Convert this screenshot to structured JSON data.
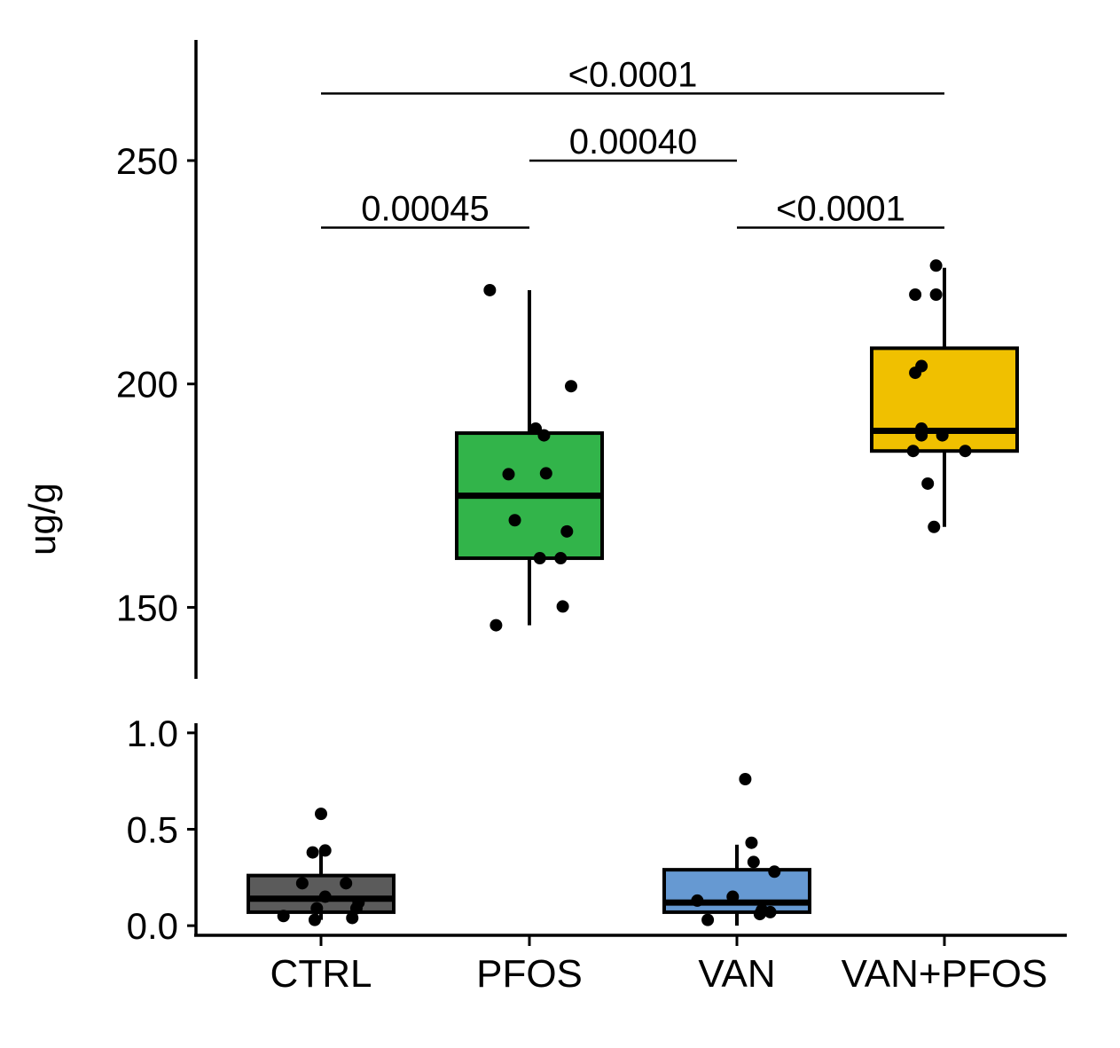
{
  "chart_data": {
    "type": "box",
    "ylabel": "ug/g",
    "categories": [
      "CTRL",
      "PFOS",
      "VAN",
      "VAN+PFOS"
    ],
    "y_axis_break": true,
    "panels": [
      {
        "name": "upper",
        "ylim": [
          134,
          277
        ],
        "ticks": [
          "150",
          "200",
          "250"
        ],
        "tick_values": [
          150,
          200,
          250
        ]
      },
      {
        "name": "lower",
        "ylim": [
          -0.05,
          1.05
        ],
        "ticks": [
          "0.0",
          "0.5",
          "1.0"
        ],
        "tick_values": [
          0.0,
          0.5,
          1.0
        ]
      }
    ],
    "groups": [
      {
        "category": "CTRL",
        "panel": "lower",
        "color": "#5b5b5b",
        "q1": 0.07,
        "median": 0.14,
        "q3": 0.26,
        "whisker_low": 0.03,
        "whisker_high": 0.38,
        "points": [
          {
            "x": 0.0,
            "y": 0.58
          },
          {
            "x": -0.04,
            "y": 0.38
          },
          {
            "x": 0.02,
            "y": 0.39
          },
          {
            "x": -0.09,
            "y": 0.22
          },
          {
            "x": 0.12,
            "y": 0.22
          },
          {
            "x": 0.02,
            "y": 0.15
          },
          {
            "x": -0.02,
            "y": 0.09
          },
          {
            "x": 0.18,
            "y": 0.12
          },
          {
            "x": 0.17,
            "y": 0.09
          },
          {
            "x": -0.18,
            "y": 0.05
          },
          {
            "x": -0.03,
            "y": 0.03
          },
          {
            "x": 0.15,
            "y": 0.04
          }
        ]
      },
      {
        "category": "PFOS",
        "panel": "upper",
        "color": "#32b44a",
        "q1": 161,
        "median": 175,
        "q3": 189,
        "whisker_low": 146,
        "whisker_high": 221,
        "points": [
          {
            "x": -0.19,
            "y": 221
          },
          {
            "x": 0.2,
            "y": 199.5
          },
          {
            "x": 0.03,
            "y": 190
          },
          {
            "x": 0.07,
            "y": 188.5
          },
          {
            "x": -0.1,
            "y": 179.8
          },
          {
            "x": 0.08,
            "y": 180
          },
          {
            "x": -0.07,
            "y": 169.5
          },
          {
            "x": 0.18,
            "y": 167
          },
          {
            "x": 0.05,
            "y": 161
          },
          {
            "x": 0.15,
            "y": 161
          },
          {
            "x": 0.16,
            "y": 150.2
          },
          {
            "x": -0.16,
            "y": 146
          }
        ]
      },
      {
        "category": "VAN",
        "panel": "lower",
        "color": "#6699d2",
        "q1": 0.07,
        "median": 0.12,
        "q3": 0.29,
        "whisker_low": 0.0,
        "whisker_high": 0.42,
        "points": [
          {
            "x": 0.04,
            "y": 0.76
          },
          {
            "x": 0.07,
            "y": 0.43
          },
          {
            "x": 0.08,
            "y": 0.33
          },
          {
            "x": 0.18,
            "y": 0.28
          },
          {
            "x": -0.02,
            "y": 0.15
          },
          {
            "x": -0.19,
            "y": 0.13
          },
          {
            "x": 0.12,
            "y": 0.08
          },
          {
            "x": 0.16,
            "y": 0.07
          },
          {
            "x": 0.11,
            "y": 0.06
          },
          {
            "x": -0.14,
            "y": 0.03
          }
        ]
      },
      {
        "category": "VAN+PFOS",
        "panel": "upper",
        "color": "#f0c000",
        "q1": 185,
        "median": 189.5,
        "q3": 208,
        "whisker_low": 168,
        "whisker_high": 226,
        "points": [
          {
            "x": -0.04,
            "y": 226.5
          },
          {
            "x": -0.14,
            "y": 220
          },
          {
            "x": -0.04,
            "y": 220
          },
          {
            "x": -0.11,
            "y": 204
          },
          {
            "x": -0.14,
            "y": 202.5
          },
          {
            "x": -0.11,
            "y": 190
          },
          {
            "x": -0.11,
            "y": 188.5
          },
          {
            "x": -0.01,
            "y": 188.5
          },
          {
            "x": -0.15,
            "y": 185
          },
          {
            "x": 0.1,
            "y": 185
          },
          {
            "x": -0.08,
            "y": 177.7
          },
          {
            "x": -0.05,
            "y": 168
          }
        ]
      }
    ],
    "comparisons": [
      {
        "from": "CTRL",
        "to": "PFOS",
        "label": "0.00045",
        "y": 235
      },
      {
        "from": "PFOS",
        "to": "VAN",
        "label": "0.00040",
        "y": 250
      },
      {
        "from": "VAN",
        "to": "VAN+PFOS",
        "label": "<0.0001",
        "y": 235
      },
      {
        "from": "CTRL",
        "to": "VAN+PFOS",
        "label": "<0.0001",
        "y": 265
      }
    ]
  }
}
